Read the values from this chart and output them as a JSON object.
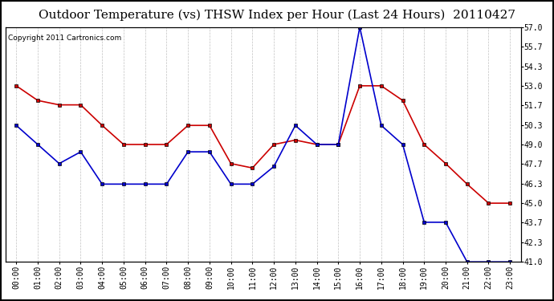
{
  "title": "Outdoor Temperature (vs) THSW Index per Hour (Last 24 Hours)  20110427",
  "copyright": "Copyright 2011 Cartronics.com",
  "hours": [
    "00:00",
    "01:00",
    "02:00",
    "03:00",
    "04:00",
    "05:00",
    "06:00",
    "07:00",
    "08:00",
    "09:00",
    "10:00",
    "11:00",
    "12:00",
    "13:00",
    "14:00",
    "15:00",
    "16:00",
    "17:00",
    "18:00",
    "19:00",
    "20:00",
    "21:00",
    "22:00",
    "23:00"
  ],
  "red_data": [
    53.0,
    52.0,
    51.7,
    51.7,
    50.3,
    49.0,
    49.0,
    49.0,
    50.3,
    50.3,
    47.7,
    47.4,
    49.0,
    49.3,
    49.0,
    49.0,
    53.0,
    53.0,
    52.0,
    49.0,
    47.7,
    46.3,
    45.0,
    45.0
  ],
  "blue_data": [
    50.3,
    49.0,
    47.7,
    48.5,
    46.3,
    46.3,
    46.3,
    46.3,
    48.5,
    48.5,
    46.3,
    46.3,
    47.5,
    50.3,
    49.0,
    49.0,
    57.0,
    50.3,
    49.0,
    43.7,
    43.7,
    41.0,
    41.0,
    41.0
  ],
  "red_color": "#cc0000",
  "blue_color": "#0000cc",
  "bg_color": "#ffffff",
  "grid_color": "#bbbbbb",
  "ylim_min": 41.0,
  "ylim_max": 57.0,
  "yticks": [
    41.0,
    42.3,
    43.7,
    45.0,
    46.3,
    47.7,
    49.0,
    50.3,
    51.7,
    53.0,
    54.3,
    55.7,
    57.0
  ],
  "title_fontsize": 11,
  "copyright_fontsize": 6.5,
  "tick_fontsize": 7
}
